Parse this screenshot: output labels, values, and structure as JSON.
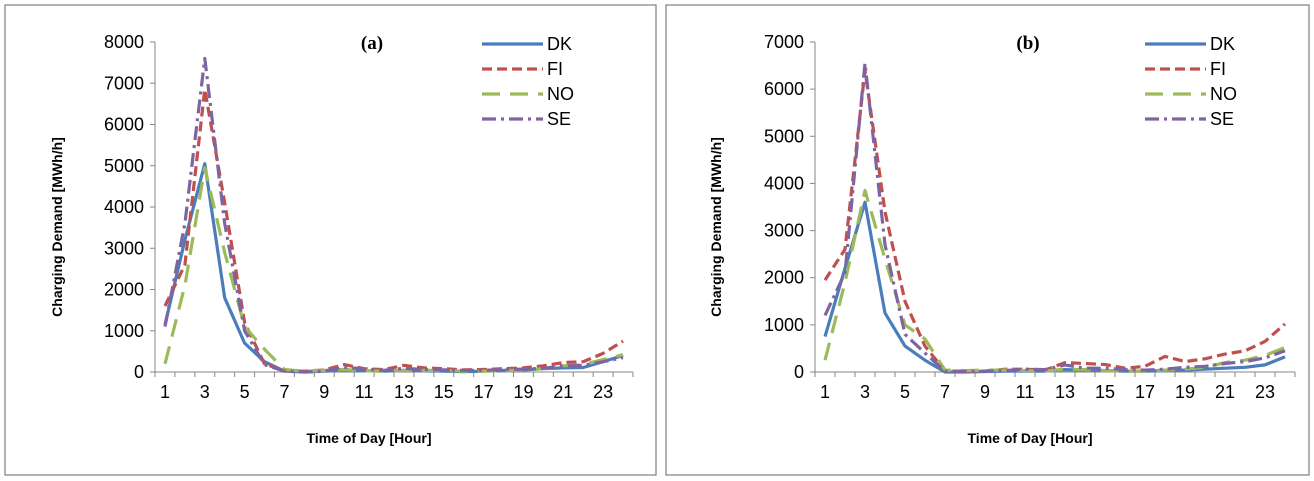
{
  "chart_data": [
    {
      "type": "line",
      "panel_label": "(a)",
      "xlabel": "Time of Day [Hour]",
      "ylabel": "Charging Demand [MWh/h]",
      "ylim": [
        0,
        8000
      ],
      "yticks": [
        0,
        1000,
        2000,
        3000,
        4000,
        5000,
        6000,
        7000,
        8000
      ],
      "xticks": [
        1,
        3,
        5,
        7,
        9,
        11,
        13,
        15,
        17,
        19,
        21,
        23
      ],
      "x": [
        1,
        2,
        3,
        4,
        5,
        6,
        7,
        8,
        9,
        10,
        11,
        12,
        13,
        14,
        15,
        16,
        17,
        18,
        19,
        20,
        21,
        22,
        23,
        24
      ],
      "grid": false,
      "legend_position": "top-right",
      "series": [
        {
          "name": "DK",
          "color": "#4a7ebb",
          "dash": "solid",
          "values": [
            1150,
            3200,
            5050,
            1800,
            700,
            250,
            20,
            0,
            20,
            40,
            30,
            20,
            40,
            30,
            20,
            10,
            20,
            40,
            50,
            80,
            100,
            110,
            250,
            400
          ]
        },
        {
          "name": "FI",
          "color": "#c0504d",
          "dash": "short",
          "values": [
            1600,
            2600,
            6850,
            4100,
            1200,
            200,
            30,
            20,
            50,
            180,
            80,
            60,
            160,
            100,
            80,
            50,
            60,
            80,
            100,
            150,
            230,
            250,
            450,
            750
          ]
        },
        {
          "name": "NO",
          "color": "#9bbb59",
          "dash": "long",
          "values": [
            200,
            2100,
            4950,
            2900,
            1100,
            550,
            60,
            20,
            40,
            60,
            30,
            20,
            40,
            40,
            40,
            20,
            20,
            30,
            50,
            80,
            150,
            180,
            300,
            420
          ]
        },
        {
          "name": "SE",
          "color": "#8064a2",
          "dash": "dashdot",
          "values": [
            1100,
            3600,
            7600,
            3600,
            1000,
            180,
            20,
            0,
            20,
            120,
            70,
            40,
            90,
            60,
            50,
            40,
            40,
            60,
            70,
            90,
            150,
            160,
            250,
            350
          ]
        }
      ]
    },
    {
      "type": "line",
      "panel_label": "(b)",
      "xlabel": "Time of Day [Hour]",
      "ylabel": "Charging Demand [MWh/h]",
      "ylim": [
        0,
        7000
      ],
      "yticks": [
        0,
        1000,
        2000,
        3000,
        4000,
        5000,
        6000,
        7000
      ],
      "xticks": [
        1,
        3,
        5,
        7,
        9,
        11,
        13,
        15,
        17,
        19,
        21,
        23
      ],
      "x": [
        1,
        2,
        3,
        4,
        5,
        6,
        7,
        8,
        9,
        10,
        11,
        12,
        13,
        14,
        15,
        16,
        17,
        18,
        19,
        20,
        21,
        22,
        23,
        24
      ],
      "grid": false,
      "legend_position": "top-right",
      "series": [
        {
          "name": "DK",
          "color": "#4a7ebb",
          "dash": "solid",
          "values": [
            750,
            2200,
            3600,
            1250,
            550,
            250,
            0,
            0,
            10,
            20,
            20,
            20,
            50,
            40,
            30,
            20,
            20,
            30,
            40,
            60,
            80,
            100,
            150,
            320
          ]
        },
        {
          "name": "FI",
          "color": "#c0504d",
          "dash": "short",
          "values": [
            1950,
            2600,
            6400,
            3400,
            1500,
            550,
            20,
            20,
            20,
            60,
            60,
            40,
            200,
            180,
            160,
            80,
            120,
            330,
            220,
            280,
            380,
            450,
            650,
            1020
          ]
        },
        {
          "name": "NO",
          "color": "#9bbb59",
          "dash": "long",
          "values": [
            250,
            1900,
            3850,
            2400,
            1000,
            700,
            40,
            30,
            40,
            40,
            30,
            20,
            60,
            50,
            30,
            20,
            20,
            40,
            60,
            100,
            200,
            250,
            350,
            520
          ]
        },
        {
          "name": "SE",
          "color": "#8064a2",
          "dash": "dashdot",
          "values": [
            1200,
            2100,
            6550,
            2700,
            800,
            400,
            20,
            10,
            20,
            30,
            60,
            50,
            150,
            80,
            80,
            50,
            40,
            60,
            100,
            120,
            180,
            220,
            300,
            450
          ]
        }
      ]
    }
  ]
}
